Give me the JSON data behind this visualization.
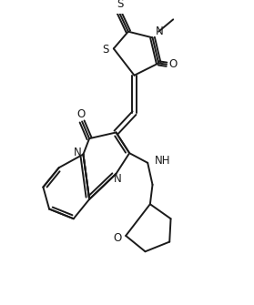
{
  "bg_color": "#ffffff",
  "line_color": "#1a1a1a",
  "line_width": 1.4,
  "font_size": 7.5,
  "xlim": [
    0,
    10
  ],
  "ylim": [
    0,
    12
  ]
}
